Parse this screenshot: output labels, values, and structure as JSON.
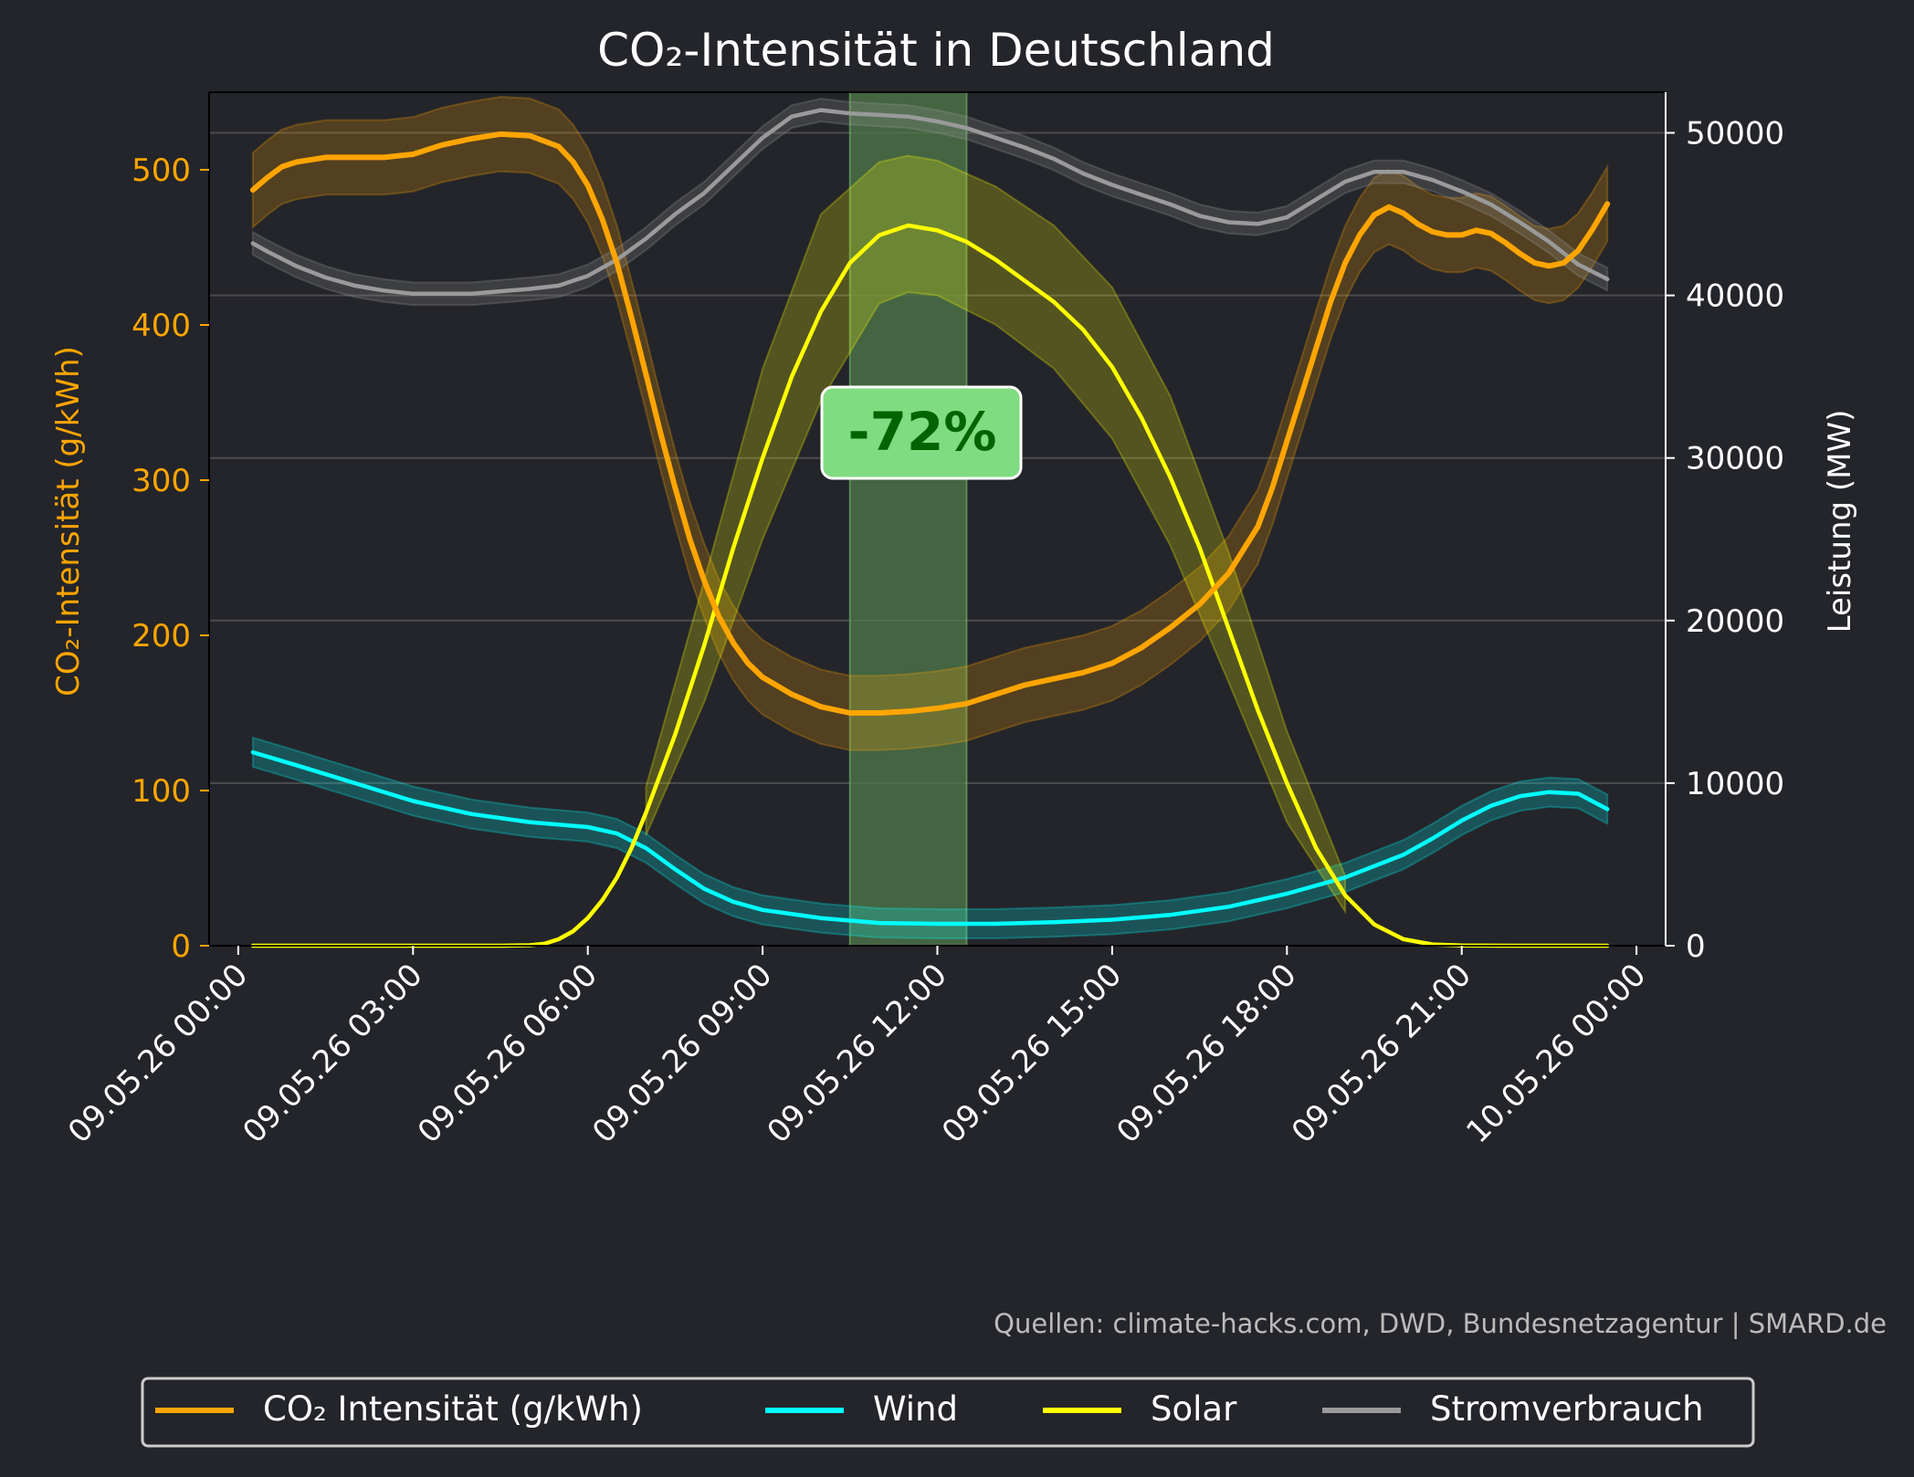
{
  "chart_data": {
    "type": "line",
    "title": "CO₂-Intensität in Deutschland",
    "ylabel_left": "CO₂-Intensität (g/kWh)",
    "ylabel_right": "Leistung (MW)",
    "ylim_left": [
      0,
      550
    ],
    "ylim_right": [
      0,
      52500
    ],
    "yticks_left": [
      0,
      100,
      200,
      300,
      400,
      500
    ],
    "yticks_right": [
      0,
      10000,
      20000,
      30000,
      40000,
      50000
    ],
    "xlim_hours": [
      -0.5,
      24.5
    ],
    "x_tick_hours": [
      0,
      3,
      6,
      9,
      12,
      15,
      18,
      21,
      24
    ],
    "x_tick_labels": [
      "09.05.26 00:00",
      "09.05.26 03:00",
      "09.05.26 06:00",
      "09.05.26 09:00",
      "09.05.26 12:00",
      "09.05.26 15:00",
      "09.05.26 18:00",
      "09.05.26 21:00",
      "10.05.26 00:00"
    ],
    "grid": true,
    "legend_position": "bottom",
    "highlight_hours": [
      10.5,
      12.5
    ],
    "annotation": "-72%",
    "source_note": "Quellen: climate-hacks.com, DWD, Bundesnetzagentur | SMARD.de",
    "colors": {
      "background": "#23252a",
      "co2": "#ffa500",
      "wind": "#00ffff",
      "solar": "#ffff00",
      "consumption": "#9a9a9a",
      "highlight": "#4f7a4a",
      "annotation_box": "#7fdc80",
      "annotation_text": "#006400"
    },
    "series": [
      {
        "name": "CO₂ Intensität (g/kWh)",
        "axis": "left",
        "points": [
          [
            0.25,
            487
          ],
          [
            0.5,
            495
          ],
          [
            0.75,
            502
          ],
          [
            1.0,
            505
          ],
          [
            1.5,
            508
          ],
          [
            2.0,
            508
          ],
          [
            2.5,
            508
          ],
          [
            3.0,
            510
          ],
          [
            3.5,
            516
          ],
          [
            4.0,
            520
          ],
          [
            4.5,
            523
          ],
          [
            5.0,
            522
          ],
          [
            5.5,
            515
          ],
          [
            5.75,
            505
          ],
          [
            6.0,
            490
          ],
          [
            6.25,
            468
          ],
          [
            6.5,
            440
          ],
          [
            6.75,
            405
          ],
          [
            7.0,
            368
          ],
          [
            7.25,
            330
          ],
          [
            7.5,
            295
          ],
          [
            7.75,
            262
          ],
          [
            8.0,
            235
          ],
          [
            8.25,
            212
          ],
          [
            8.5,
            195
          ],
          [
            8.75,
            182
          ],
          [
            9.0,
            173
          ],
          [
            9.5,
            162
          ],
          [
            10.0,
            154
          ],
          [
            10.5,
            150
          ],
          [
            11.0,
            150
          ],
          [
            11.5,
            151
          ],
          [
            12.0,
            153
          ],
          [
            12.5,
            156
          ],
          [
            13.0,
            162
          ],
          [
            13.5,
            168
          ],
          [
            14.0,
            172
          ],
          [
            14.5,
            176
          ],
          [
            15.0,
            182
          ],
          [
            15.5,
            192
          ],
          [
            16.0,
            205
          ],
          [
            16.5,
            220
          ],
          [
            17.0,
            240
          ],
          [
            17.5,
            270
          ],
          [
            17.75,
            295
          ],
          [
            18.0,
            325
          ],
          [
            18.25,
            355
          ],
          [
            18.5,
            385
          ],
          [
            18.75,
            415
          ],
          [
            19.0,
            440
          ],
          [
            19.25,
            458
          ],
          [
            19.5,
            471
          ],
          [
            19.75,
            476
          ],
          [
            20.0,
            472
          ],
          [
            20.25,
            465
          ],
          [
            20.5,
            460
          ],
          [
            20.75,
            458
          ],
          [
            21.0,
            458
          ],
          [
            21.25,
            461
          ],
          [
            21.5,
            459
          ],
          [
            21.75,
            453
          ],
          [
            22.0,
            446
          ],
          [
            22.25,
            440
          ],
          [
            22.5,
            438
          ],
          [
            22.75,
            440
          ],
          [
            23.0,
            448
          ],
          [
            23.25,
            462
          ],
          [
            23.5,
            478
          ]
        ],
        "band": 24
      },
      {
        "name": "Wind",
        "axis": "right",
        "points": [
          [
            0.25,
            11900
          ],
          [
            1.0,
            11100
          ],
          [
            2.0,
            10000
          ],
          [
            3.0,
            8900
          ],
          [
            4.0,
            8100
          ],
          [
            5.0,
            7600
          ],
          [
            6.0,
            7300
          ],
          [
            6.5,
            6900
          ],
          [
            7.0,
            6000
          ],
          [
            7.5,
            4700
          ],
          [
            8.0,
            3500
          ],
          [
            8.5,
            2700
          ],
          [
            9.0,
            2200
          ],
          [
            10.0,
            1700
          ],
          [
            11.0,
            1400
          ],
          [
            12.0,
            1350
          ],
          [
            13.0,
            1350
          ],
          [
            14.0,
            1450
          ],
          [
            15.0,
            1600
          ],
          [
            16.0,
            1900
          ],
          [
            17.0,
            2400
          ],
          [
            18.0,
            3200
          ],
          [
            19.0,
            4200
          ],
          [
            20.0,
            5600
          ],
          [
            20.5,
            6600
          ],
          [
            21.0,
            7700
          ],
          [
            21.5,
            8600
          ],
          [
            22.0,
            9200
          ],
          [
            22.5,
            9450
          ],
          [
            23.0,
            9350
          ],
          [
            23.5,
            8400
          ]
        ],
        "band": 900
      },
      {
        "name": "Solar",
        "axis": "right",
        "points": [
          [
            0.25,
            0
          ],
          [
            4.5,
            0
          ],
          [
            5.0,
            30
          ],
          [
            5.25,
            120
          ],
          [
            5.5,
            400
          ],
          [
            5.75,
            900
          ],
          [
            6.0,
            1700
          ],
          [
            6.25,
            2800
          ],
          [
            6.5,
            4200
          ],
          [
            6.75,
            6000
          ],
          [
            7.0,
            8200
          ],
          [
            7.5,
            13000
          ],
          [
            8.0,
            18500
          ],
          [
            8.5,
            24500
          ],
          [
            9.0,
            30000
          ],
          [
            9.5,
            35000
          ],
          [
            10.0,
            39000
          ],
          [
            10.5,
            42000
          ],
          [
            11.0,
            43700
          ],
          [
            11.5,
            44300
          ],
          [
            12.0,
            44000
          ],
          [
            12.5,
            43300
          ],
          [
            13.0,
            42200
          ],
          [
            13.5,
            40900
          ],
          [
            14.0,
            39600
          ],
          [
            14.5,
            37900
          ],
          [
            15.0,
            35600
          ],
          [
            15.5,
            32500
          ],
          [
            16.0,
            28800
          ],
          [
            16.5,
            24500
          ],
          [
            17.0,
            19500
          ],
          [
            17.5,
            14500
          ],
          [
            18.0,
            10000
          ],
          [
            18.5,
            6000
          ],
          [
            19.0,
            3100
          ],
          [
            19.5,
            1300
          ],
          [
            20.0,
            400
          ],
          [
            20.5,
            80
          ],
          [
            21.0,
            10
          ],
          [
            22.0,
            0
          ],
          [
            23.5,
            0
          ]
        ],
        "band_upper": [
          [
            7.0,
            9800
          ],
          [
            8.0,
            22500
          ],
          [
            9.0,
            35500
          ],
          [
            10.0,
            45000
          ],
          [
            11.0,
            48200
          ],
          [
            11.5,
            48600
          ],
          [
            12.0,
            48300
          ],
          [
            13.0,
            46700
          ],
          [
            14.0,
            44300
          ],
          [
            15.0,
            40500
          ],
          [
            16.0,
            33800
          ],
          [
            17.0,
            24200
          ],
          [
            18.0,
            13200
          ],
          [
            19.0,
            4300
          ]
        ],
        "band_lower": [
          [
            7.0,
            6800
          ],
          [
            8.0,
            15000
          ],
          [
            9.0,
            25000
          ],
          [
            10.0,
            33500
          ],
          [
            11.0,
            39500
          ],
          [
            11.5,
            40200
          ],
          [
            12.0,
            40000
          ],
          [
            13.0,
            38200
          ],
          [
            14.0,
            35500
          ],
          [
            15.0,
            31200
          ],
          [
            16.0,
            24600
          ],
          [
            17.0,
            16200
          ],
          [
            18.0,
            7600
          ],
          [
            19.0,
            2100
          ]
        ]
      },
      {
        "name": "Stromverbrauch",
        "axis": "right",
        "points": [
          [
            0.25,
            43200
          ],
          [
            0.5,
            42700
          ],
          [
            1.0,
            41800
          ],
          [
            1.5,
            41100
          ],
          [
            2.0,
            40600
          ],
          [
            2.5,
            40300
          ],
          [
            3.0,
            40100
          ],
          [
            4.0,
            40100
          ],
          [
            5.0,
            40400
          ],
          [
            5.5,
            40600
          ],
          [
            6.0,
            41200
          ],
          [
            6.5,
            42200
          ],
          [
            7.0,
            43500
          ],
          [
            7.5,
            45000
          ],
          [
            8.0,
            46300
          ],
          [
            8.5,
            48000
          ],
          [
            9.0,
            49700
          ],
          [
            9.5,
            51000
          ],
          [
            10.0,
            51400
          ],
          [
            10.5,
            51200
          ],
          [
            11.0,
            51100
          ],
          [
            11.5,
            51000
          ],
          [
            12.0,
            50700
          ],
          [
            12.5,
            50300
          ],
          [
            13.0,
            49700
          ],
          [
            13.5,
            49100
          ],
          [
            14.0,
            48400
          ],
          [
            14.5,
            47500
          ],
          [
            15.0,
            46800
          ],
          [
            15.5,
            46200
          ],
          [
            16.0,
            45600
          ],
          [
            16.5,
            44900
          ],
          [
            17.0,
            44500
          ],
          [
            17.5,
            44400
          ],
          [
            18.0,
            44800
          ],
          [
            18.5,
            45900
          ],
          [
            19.0,
            47000
          ],
          [
            19.5,
            47600
          ],
          [
            20.0,
            47600
          ],
          [
            20.5,
            47100
          ],
          [
            21.0,
            46400
          ],
          [
            21.5,
            45600
          ],
          [
            22.0,
            44500
          ],
          [
            22.5,
            43300
          ],
          [
            23.0,
            41900
          ],
          [
            23.5,
            41000
          ]
        ],
        "band": 700
      }
    ]
  }
}
